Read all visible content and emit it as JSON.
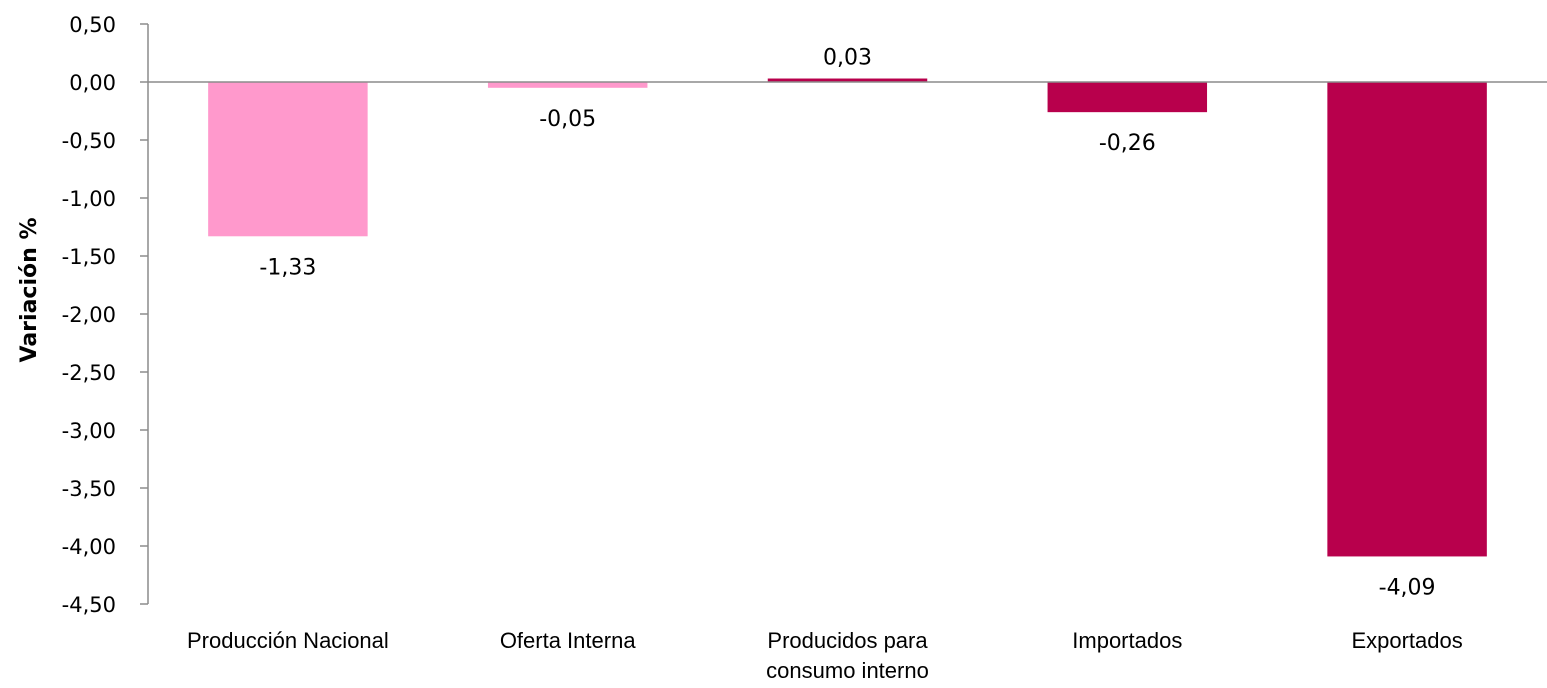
{
  "chart_data": {
    "type": "bar",
    "title": "",
    "xlabel": "",
    "ylabel": "Variación %",
    "ylim": [
      -4.5,
      0.5
    ],
    "yticks": [
      0.5,
      0,
      -0.5,
      -1,
      -1.5,
      -2,
      -2.5,
      -3,
      -3.5,
      -4,
      -4.5
    ],
    "ytick_labels": [
      "0,50",
      "0,00",
      "-0,50",
      "-1,00",
      "-1,50",
      "-2,00",
      "-2,50",
      "-3,00",
      "-3,50",
      "-4,00",
      "-4,50"
    ],
    "categories": [
      [
        "Producción Nacional"
      ],
      [
        "Oferta Interna"
      ],
      [
        "Producidos para",
        "consumo interno"
      ],
      [
        "Importados"
      ],
      [
        "Exportados"
      ]
    ],
    "values": [
      -1.33,
      -0.05,
      0.03,
      -0.26,
      -4.09
    ],
    "value_labels": [
      "-1,33",
      "-0,05",
      "0,03",
      "-0,26",
      "-4,09"
    ],
    "colors": [
      "#ff99cc",
      "#ff99cc",
      "#b8004c",
      "#b8004c",
      "#b8004c"
    ],
    "grid": false,
    "legend": "none"
  }
}
